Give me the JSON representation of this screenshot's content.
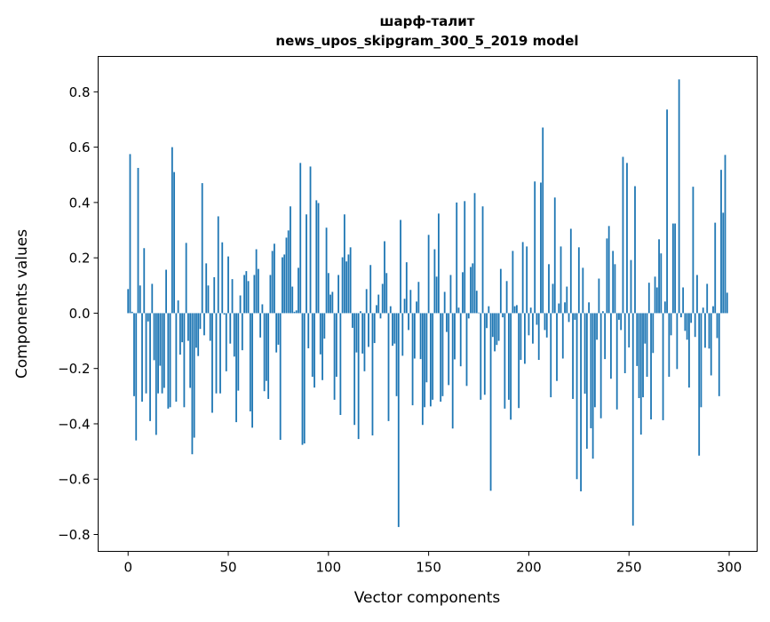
{
  "chart_data": {
    "type": "bar",
    "title": "шарф-талит",
    "subtitle": "news_upos_skipgram_300_5_2019 model",
    "xlabel": "Vector components",
    "ylabel": "Components values",
    "xlim": [
      -14.95,
      313.95
    ],
    "ylim": [
      -0.861,
      0.928
    ],
    "xticks": [
      0,
      50,
      100,
      150,
      200,
      250,
      300
    ],
    "xtick_labels": [
      "0",
      "50",
      "100",
      "150",
      "200",
      "250",
      "300"
    ],
    "yticks": [
      -0.8,
      -0.6,
      -0.4,
      -0.2,
      0.0,
      0.2,
      0.4,
      0.6,
      0.8
    ],
    "ytick_labels": [
      "−0.8",
      "−0.6",
      "−0.4",
      "−0.2",
      "0.0",
      "0.2",
      "0.4",
      "0.6",
      "0.8"
    ],
    "grid": false,
    "bar_color": "#1f77b4",
    "values": [
      0.087,
      0.575,
      0.005,
      -0.3,
      -0.46,
      0.525,
      0.1,
      -0.32,
      0.235,
      -0.29,
      -0.03,
      -0.39,
      0.106,
      -0.17,
      -0.44,
      -0.29,
      -0.19,
      -0.29,
      -0.27,
      0.157,
      -0.345,
      -0.34,
      0.6,
      0.51,
      -0.32,
      0.046,
      -0.15,
      -0.105,
      -0.34,
      0.254,
      -0.1,
      -0.27,
      -0.51,
      -0.45,
      -0.125,
      -0.155,
      -0.057,
      0.47,
      -0.08,
      0.18,
      0.1,
      -0.1,
      -0.36,
      0.13,
      -0.29,
      0.35,
      -0.29,
      0.256,
      -0.005,
      -0.21,
      0.205,
      -0.11,
      0.123,
      -0.157,
      -0.394,
      -0.28,
      0.064,
      -0.134,
      0.138,
      0.152,
      0.116,
      -0.355,
      -0.414,
      0.138,
      0.231,
      0.16,
      -0.088,
      0.032,
      -0.282,
      -0.245,
      -0.31,
      0.138,
      0.225,
      0.251,
      -0.142,
      -0.114,
      -0.458,
      0.202,
      0.212,
      0.273,
      0.299,
      0.386,
      0.096,
      0.005,
      0.01,
      0.164,
      0.543,
      -0.476,
      -0.471,
      0.357,
      -0.127,
      0.53,
      -0.23,
      -0.269,
      0.408,
      0.398,
      -0.149,
      -0.242,
      -0.092,
      0.309,
      0.145,
      0.067,
      0.077,
      -0.313,
      -0.23,
      0.138,
      -0.368,
      0.202,
      0.357,
      0.187,
      0.212,
      0.238,
      -0.053,
      -0.404,
      -0.142,
      -0.455,
      0.007,
      -0.146,
      -0.21,
      0.087,
      -0.122,
      0.174,
      -0.442,
      -0.108,
      0.029,
      0.067,
      -0.019,
      0.106,
      0.26,
      0.145,
      -0.39,
      0.025,
      -0.118,
      -0.11,
      -0.3,
      -0.773,
      0.337,
      -0.154,
      0.052,
      0.184,
      -0.061,
      0.084,
      -0.333,
      -0.164,
      0.042,
      0.113,
      -0.166,
      -0.404,
      -0.34,
      -0.25,
      0.283,
      -0.337,
      -0.313,
      0.231,
      0.132,
      0.36,
      -0.32,
      -0.3,
      0.077,
      -0.068,
      -0.26,
      0.138,
      -0.417,
      -0.167,
      0.4,
      0.02,
      -0.192,
      0.148,
      0.405,
      -0.263,
      -0.019,
      0.167,
      0.18,
      0.434,
      0.081,
      0.002,
      -0.313,
      0.386,
      -0.295,
      -0.054,
      0.025,
      -0.642,
      -0.086,
      -0.138,
      -0.115,
      -0.1,
      0.16,
      -0.015,
      -0.345,
      0.116,
      -0.313,
      -0.385,
      0.225,
      0.025,
      0.029,
      -0.343,
      -0.169,
      0.257,
      -0.183,
      0.241,
      -0.08,
      0.02,
      -0.11,
      0.476,
      -0.042,
      -0.169,
      0.472,
      0.671,
      -0.061,
      -0.088,
      0.177,
      -0.304,
      0.106,
      0.418,
      -0.245,
      0.035,
      0.241,
      -0.164,
      0.039,
      0.096,
      -0.032,
      0.305,
      -0.31,
      -0.024,
      -0.6,
      0.238,
      -0.644,
      0.164,
      -0.291,
      -0.49,
      0.039,
      -0.416,
      -0.526,
      -0.34,
      -0.096,
      0.125,
      -0.38,
      0.007,
      -0.166,
      0.27,
      0.315,
      -0.237,
      0.225,
      0.177,
      -0.348,
      -0.024,
      -0.061,
      0.565,
      -0.217,
      0.543,
      -0.124,
      0.192,
      -0.768,
      0.459,
      -0.191,
      -0.307,
      -0.439,
      -0.304,
      -0.11,
      -0.23,
      0.11,
      -0.384,
      -0.144,
      0.132,
      0.093,
      0.267,
      0.216,
      -0.387,
      0.042,
      0.736,
      -0.23,
      -0.08,
      0.324,
      0.324,
      -0.202,
      0.845,
      -0.015,
      0.093,
      -0.064,
      -0.096,
      -0.269,
      -0.035,
      0.457,
      -0.086,
      0.138,
      -0.515,
      -0.34,
      0.02,
      -0.125,
      0.106,
      -0.128,
      -0.225,
      0.025,
      0.327,
      -0.09,
      -0.3,
      0.518,
      0.363,
      0.572,
      0.074
    ]
  }
}
